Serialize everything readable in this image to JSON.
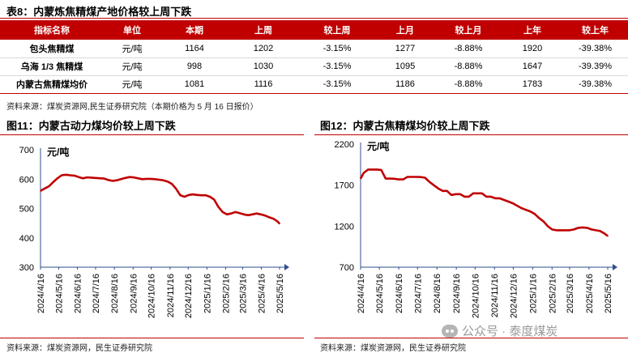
{
  "table": {
    "title": "表8：内蒙炼焦精煤产地价格较上周下跌",
    "headers": [
      "指标名称",
      "单位",
      "本期",
      "上周",
      "较上周",
      "上月",
      "较上月",
      "上年",
      "较上年"
    ],
    "rows": [
      [
        "包头焦精煤",
        "元/吨",
        "1164",
        "1202",
        "-3.15%",
        "1277",
        "-8.88%",
        "1920",
        "-39.38%"
      ],
      [
        "乌海 1/3 焦精煤",
        "元/吨",
        "998",
        "1030",
        "-3.15%",
        "1095",
        "-8.88%",
        "1647",
        "-39.39%"
      ],
      [
        "内蒙古焦精煤均价",
        "元/吨",
        "1081",
        "1116",
        "-3.15%",
        "1186",
        "-8.88%",
        "1783",
        "-39.38%"
      ]
    ],
    "source": "资料来源：煤炭资源网,民生证券研究院（本期价格为 5 月 16 日报价）"
  },
  "charts": [
    {
      "title": "图11：内蒙古动力煤均价较上周下跌",
      "source": "资料来源：煤炭资源网，民生证券研究院"
    },
    {
      "title": "图12：内蒙古焦精煤均价较上周下跌",
      "source": "资料来源：煤炭资源网，民生证券研究院"
    }
  ],
  "watermark": "公众号 · 泰度煤炭",
  "colors": {
    "accent": "#c00000",
    "line": "#c00000",
    "axis": "#2f4f8f"
  },
  "chart_data": [
    {
      "type": "line",
      "ylabel": "元/吨",
      "ylim": [
        300,
        700
      ],
      "yticks": [
        300,
        400,
        500,
        600,
        700
      ],
      "x_range": [
        "2024-04-16",
        "2025-05-16"
      ],
      "xticks": [
        "2024/4/16",
        "2024/5/16",
        "2024/6/16",
        "2024/7/16",
        "2024/8/16",
        "2024/9/16",
        "2024/10/16",
        "2024/11/16",
        "2024/12/16",
        "2025/1/16",
        "2025/2/16",
        "2025/3/16",
        "2025/4/16",
        "2025/5/16"
      ],
      "points": [
        [
          "2024-04-16",
          560
        ],
        [
          "2024-04-23",
          568
        ],
        [
          "2024-04-30",
          576
        ],
        [
          "2024-05-07",
          590
        ],
        [
          "2024-05-14",
          603
        ],
        [
          "2024-05-21",
          613
        ],
        [
          "2024-05-28",
          615
        ],
        [
          "2024-06-04",
          613
        ],
        [
          "2024-06-11",
          612
        ],
        [
          "2024-06-18",
          607
        ],
        [
          "2024-06-25",
          603
        ],
        [
          "2024-07-02",
          606
        ],
        [
          "2024-07-09",
          605
        ],
        [
          "2024-07-16",
          604
        ],
        [
          "2024-07-23",
          603
        ],
        [
          "2024-07-30",
          602
        ],
        [
          "2024-08-06",
          597
        ],
        [
          "2024-08-13",
          594
        ],
        [
          "2024-08-20",
          596
        ],
        [
          "2024-08-27",
          600
        ],
        [
          "2024-09-03",
          604
        ],
        [
          "2024-09-10",
          607
        ],
        [
          "2024-09-17",
          606
        ],
        [
          "2024-09-24",
          603
        ],
        [
          "2024-10-01",
          600
        ],
        [
          "2024-10-08",
          601
        ],
        [
          "2024-10-15",
          601
        ],
        [
          "2024-10-22",
          600
        ],
        [
          "2024-10-29",
          598
        ],
        [
          "2024-11-05",
          596
        ],
        [
          "2024-11-12",
          592
        ],
        [
          "2024-11-19",
          584
        ],
        [
          "2024-11-26",
          567
        ],
        [
          "2024-12-03",
          545
        ],
        [
          "2024-12-10",
          540
        ],
        [
          "2024-12-17",
          546
        ],
        [
          "2024-12-24",
          548
        ],
        [
          "2024-12-31",
          546
        ],
        [
          "2025-01-07",
          545
        ],
        [
          "2025-01-14",
          545
        ],
        [
          "2025-01-21",
          540
        ],
        [
          "2025-01-28",
          530
        ],
        [
          "2025-02-04",
          505
        ],
        [
          "2025-02-11",
          488
        ],
        [
          "2025-02-18",
          480
        ],
        [
          "2025-02-25",
          483
        ],
        [
          "2025-03-04",
          488
        ],
        [
          "2025-03-11",
          484
        ],
        [
          "2025-03-18",
          480
        ],
        [
          "2025-03-25",
          477
        ],
        [
          "2025-04-01",
          480
        ],
        [
          "2025-04-08",
          483
        ],
        [
          "2025-04-15",
          480
        ],
        [
          "2025-04-22",
          476
        ],
        [
          "2025-04-29",
          470
        ],
        [
          "2025-05-06",
          465
        ],
        [
          "2025-05-13",
          455
        ],
        [
          "2025-05-16",
          448
        ]
      ]
    },
    {
      "type": "line",
      "ylabel": "元/吨",
      "ylim": [
        700,
        2200
      ],
      "yticks": [
        700,
        1200,
        1700,
        2200
      ],
      "x_range": [
        "2024-04-16",
        "2025-05-16"
      ],
      "xticks": [
        "2024/4/16",
        "2024/5/16",
        "2024/6/16",
        "2024/7/16",
        "2024/8/16",
        "2024/9/16",
        "2024/10/16",
        "2024/11/16",
        "2024/12/16",
        "2025/1/16",
        "2025/2/16",
        "2025/3/16",
        "2025/4/16",
        "2025/5/16"
      ],
      "points": [
        [
          "2024-04-16",
          1780
        ],
        [
          "2024-04-21",
          1850
        ],
        [
          "2024-04-28",
          1890
        ],
        [
          "2024-05-05",
          1890
        ],
        [
          "2024-05-12",
          1890
        ],
        [
          "2024-05-19",
          1885
        ],
        [
          "2024-05-26",
          1780
        ],
        [
          "2024-06-02",
          1780
        ],
        [
          "2024-06-09",
          1778
        ],
        [
          "2024-06-16",
          1770
        ],
        [
          "2024-06-23",
          1770
        ],
        [
          "2024-06-30",
          1800
        ],
        [
          "2024-07-07",
          1800
        ],
        [
          "2024-07-14",
          1800
        ],
        [
          "2024-07-21",
          1798
        ],
        [
          "2024-07-28",
          1790
        ],
        [
          "2024-08-04",
          1740
        ],
        [
          "2024-08-11",
          1700
        ],
        [
          "2024-08-18",
          1660
        ],
        [
          "2024-08-25",
          1630
        ],
        [
          "2024-09-01",
          1630
        ],
        [
          "2024-09-08",
          1580
        ],
        [
          "2024-09-15",
          1590
        ],
        [
          "2024-09-22",
          1590
        ],
        [
          "2024-09-29",
          1560
        ],
        [
          "2024-10-06",
          1560
        ],
        [
          "2024-10-13",
          1600
        ],
        [
          "2024-10-20",
          1600
        ],
        [
          "2024-10-27",
          1600
        ],
        [
          "2024-11-03",
          1560
        ],
        [
          "2024-11-10",
          1560
        ],
        [
          "2024-11-17",
          1540
        ],
        [
          "2024-11-24",
          1540
        ],
        [
          "2024-12-01",
          1520
        ],
        [
          "2024-12-08",
          1500
        ],
        [
          "2024-12-15",
          1480
        ],
        [
          "2024-12-22",
          1450
        ],
        [
          "2024-12-29",
          1420
        ],
        [
          "2025-01-05",
          1400
        ],
        [
          "2025-01-12",
          1380
        ],
        [
          "2025-01-19",
          1350
        ],
        [
          "2025-01-26",
          1300
        ],
        [
          "2025-02-02",
          1260
        ],
        [
          "2025-02-09",
          1200
        ],
        [
          "2025-02-16",
          1160
        ],
        [
          "2025-02-23",
          1150
        ],
        [
          "2025-03-02",
          1150
        ],
        [
          "2025-03-09",
          1150
        ],
        [
          "2025-03-16",
          1150
        ],
        [
          "2025-03-23",
          1160
        ],
        [
          "2025-03-30",
          1180
        ],
        [
          "2025-04-06",
          1185
        ],
        [
          "2025-04-13",
          1180
        ],
        [
          "2025-04-20",
          1160
        ],
        [
          "2025-04-27",
          1150
        ],
        [
          "2025-05-04",
          1140
        ],
        [
          "2025-05-11",
          1110
        ],
        [
          "2025-05-16",
          1080
        ]
      ]
    }
  ]
}
